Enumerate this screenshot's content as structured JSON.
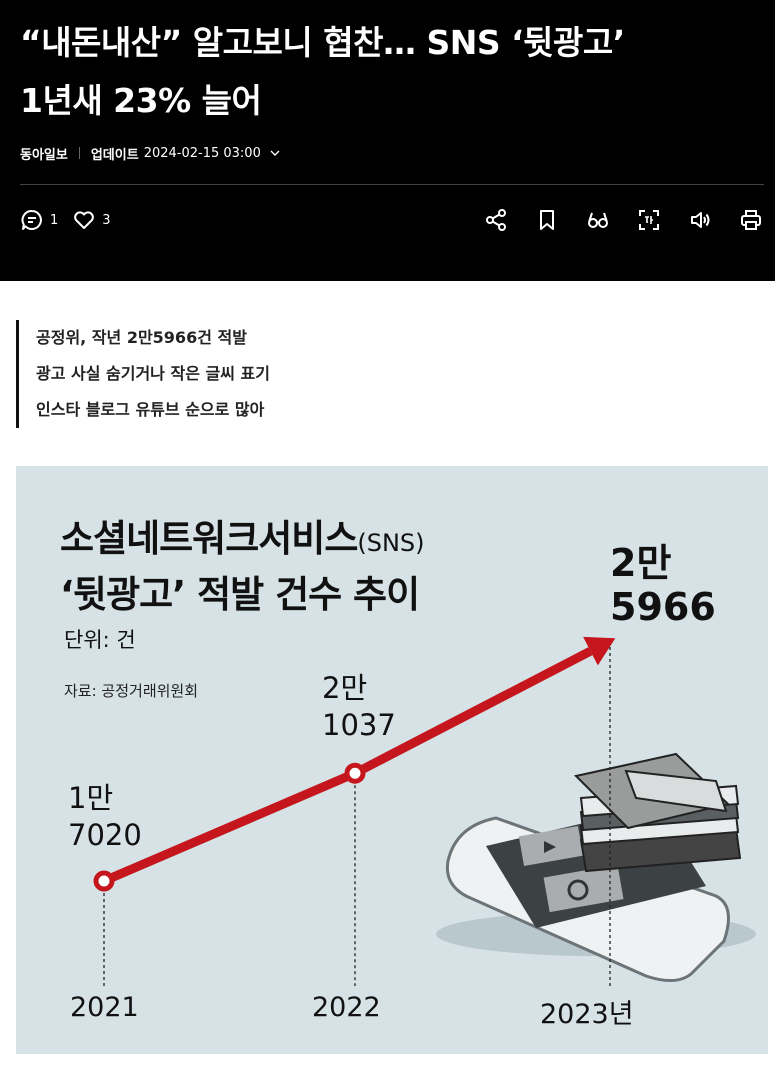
{
  "article": {
    "headline_line1": "“내돈내산” 알고보니 협찬… SNS ‘뒷광고’",
    "headline_line2": "1년새 23% 늘어",
    "press": "동아일보",
    "updated_label": "업데이트",
    "updated_time": "2024-02-15 03:00"
  },
  "actions": {
    "comment_count": "1",
    "like_count": "3",
    "icons": [
      "comment-icon",
      "heart-icon",
      "share-icon",
      "bookmark-icon",
      "glasses-icon",
      "scan-icon",
      "speaker-icon",
      "print-icon"
    ]
  },
  "summary": {
    "lines": [
      "공정위, 작년 2만5966건 적발",
      "광고 사실 숨기거나 작은 글씨 표기",
      "인스타 블로그 유튜브 순으로 많아"
    ]
  },
  "infographic": {
    "title_line1": "소셜네트워크서비스",
    "title_line1_suffix": "(SNS)",
    "title_line2": "‘뒷광고’ 적발 건수 추이",
    "unit": "단위: 건",
    "source": "자료: 공정거래위원회",
    "colors": {
      "background": "#d6e2e6",
      "line": "#c4161c"
    }
  },
  "chart_data": {
    "type": "line",
    "categories": [
      "2021",
      "2022",
      "2023년"
    ],
    "values": [
      17020,
      21037,
      25966
    ],
    "value_labels": [
      [
        "1만",
        "7020"
      ],
      [
        "2만",
        "1037"
      ],
      [
        "2만",
        "5966"
      ]
    ],
    "title": "소셜네트워크서비스(SNS) ‘뒷광고’ 적발 건수 추이",
    "ylabel": "단위: 건"
  }
}
